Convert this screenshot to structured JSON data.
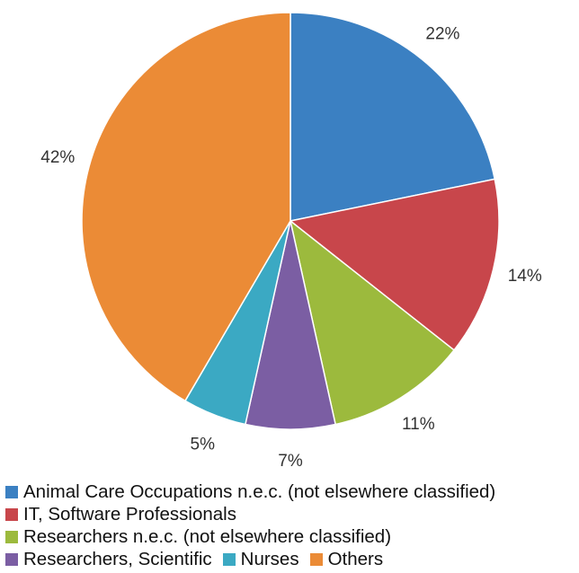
{
  "chart_data": {
    "type": "pie",
    "categories": [
      "Animal Care Occupations n.e.c. (not elsewhere classified)",
      "IT, Software Professionals",
      "Researchers n.e.c. (not elsewhere classified)",
      "Researchers, Scientific",
      "Nurses",
      "Others"
    ],
    "values": [
      22,
      14,
      11,
      7,
      5,
      42
    ],
    "value_labels": [
      "22%",
      "14%",
      "11%",
      "7%",
      "5%",
      "42%"
    ],
    "colors": [
      "#3b80c2",
      "#c8464b",
      "#9cba3d",
      "#7b5ea3",
      "#3ba9c3",
      "#eb8b36"
    ],
    "legend": "bottom"
  }
}
